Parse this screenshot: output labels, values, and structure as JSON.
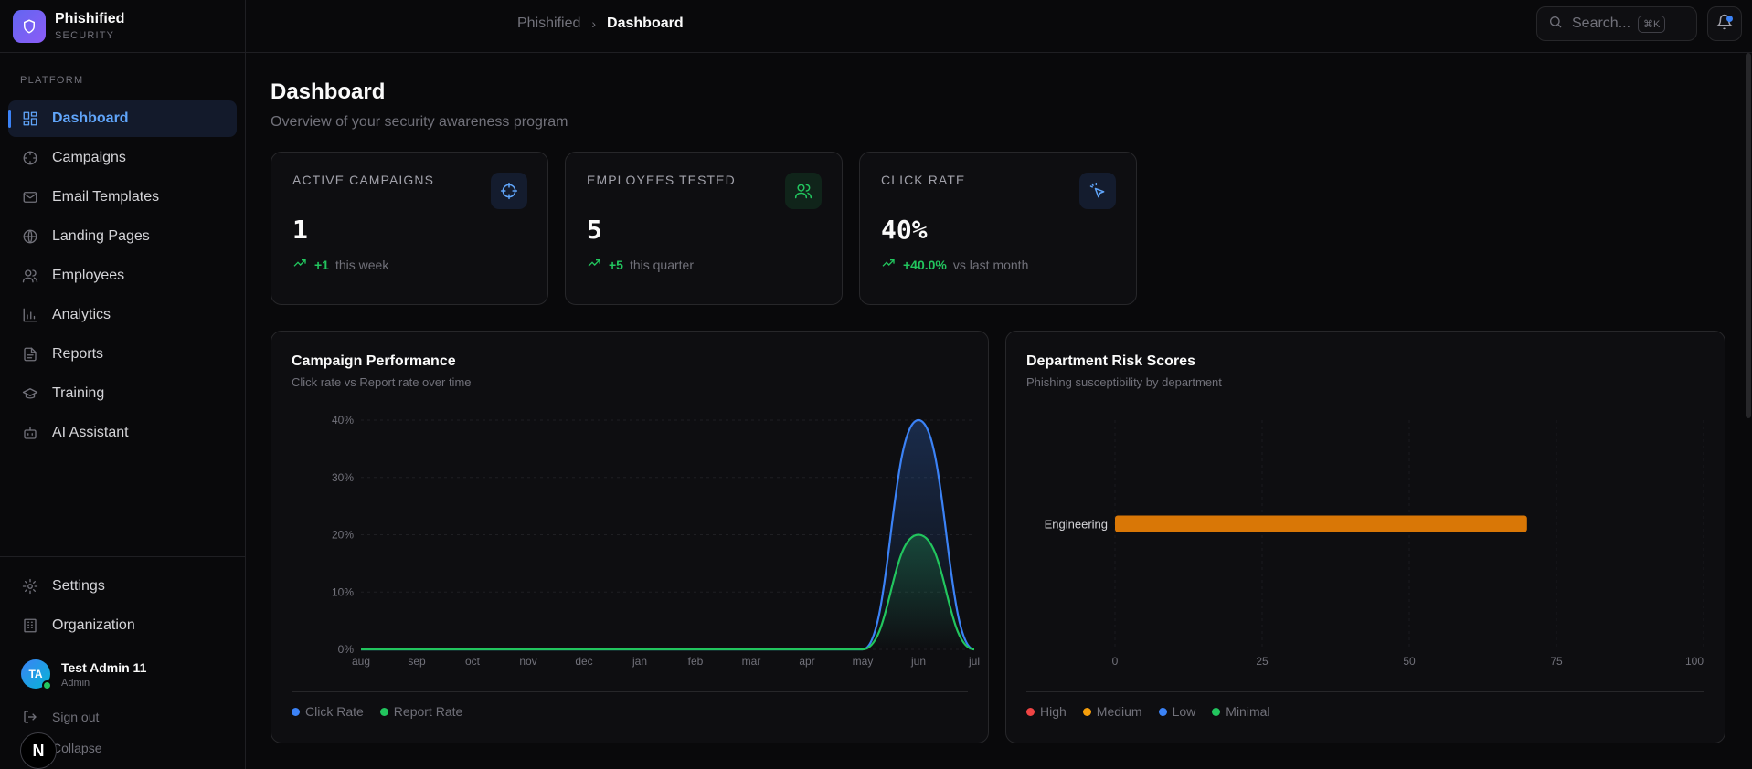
{
  "brand": {
    "name": "Phishified",
    "sub": "SECURITY"
  },
  "sidebar": {
    "section_label": "PLATFORM",
    "items": [
      {
        "label": "Dashboard",
        "icon": "dashboard-icon",
        "active": true
      },
      {
        "label": "Campaigns",
        "icon": "target-icon"
      },
      {
        "label": "Email Templates",
        "icon": "mail-icon"
      },
      {
        "label": "Landing Pages",
        "icon": "globe-icon"
      },
      {
        "label": "Employees",
        "icon": "users-icon"
      },
      {
        "label": "Analytics",
        "icon": "bar-chart-icon"
      },
      {
        "label": "Reports",
        "icon": "file-icon"
      },
      {
        "label": "Training",
        "icon": "graduation-cap-icon"
      },
      {
        "label": "AI Assistant",
        "icon": "bot-icon"
      }
    ],
    "bottom_items": [
      {
        "label": "Settings",
        "icon": "gear-icon"
      },
      {
        "label": "Organization",
        "icon": "building-icon"
      }
    ],
    "user": {
      "initials": "TA",
      "name": "Test Admin 11",
      "role": "Admin"
    },
    "sign_out": "Sign out",
    "collapse": "Collapse",
    "badge": "N"
  },
  "topbar": {
    "breadcrumb_root": "Phishified",
    "breadcrumb_current": "Dashboard",
    "search_placeholder": "Search...",
    "search_shortcut": "⌘K"
  },
  "page": {
    "title": "Dashboard",
    "subtitle": "Overview of your security awareness program"
  },
  "stats": [
    {
      "label": "ACTIVE CAMPAIGNS",
      "value": "1",
      "delta": "+1",
      "note": "this week",
      "icon": "crosshair-icon",
      "color": "#60a5fa"
    },
    {
      "label": "EMPLOYEES TESTED",
      "value": "5",
      "delta": "+5",
      "note": "this quarter",
      "icon": "users-icon",
      "color": "#22c55e"
    },
    {
      "label": "CLICK RATE",
      "value": "40%",
      "delta": "+40.0%",
      "note": "vs last month",
      "icon": "pointer-click-icon",
      "color": "#60a5fa"
    }
  ],
  "campaign_chart": {
    "title": "Campaign Performance",
    "subtitle": "Click rate vs Report rate over time",
    "legend": [
      {
        "label": "Click Rate",
        "color": "#3b82f6"
      },
      {
        "label": "Report Rate",
        "color": "#22c55e"
      }
    ]
  },
  "risk_chart": {
    "title": "Department Risk Scores",
    "subtitle": "Phishing susceptibility by department",
    "legend": [
      {
        "label": "High",
        "color": "#ef4444"
      },
      {
        "label": "Medium",
        "color": "#f59e0b"
      },
      {
        "label": "Low",
        "color": "#3b82f6"
      },
      {
        "label": "Minimal",
        "color": "#22c55e"
      }
    ]
  },
  "chart_data": [
    {
      "type": "area",
      "title": "Campaign Performance",
      "categories": [
        "aug",
        "sep",
        "oct",
        "nov",
        "dec",
        "jan",
        "feb",
        "mar",
        "apr",
        "may",
        "jun",
        "jul"
      ],
      "series": [
        {
          "name": "Click Rate",
          "values": [
            0,
            0,
            0,
            0,
            0,
            0,
            0,
            0,
            0,
            0,
            40,
            0
          ],
          "color": "#3b82f6"
        },
        {
          "name": "Report Rate",
          "values": [
            0,
            0,
            0,
            0,
            0,
            0,
            0,
            0,
            0,
            0,
            20,
            0
          ],
          "color": "#22c55e"
        }
      ],
      "y_ticks": [
        "0%",
        "10%",
        "20%",
        "30%",
        "40%"
      ],
      "ylim": [
        0,
        40
      ]
    },
    {
      "type": "bar",
      "orientation": "horizontal",
      "title": "Department Risk Scores",
      "categories": [
        "Engineering"
      ],
      "values": [
        70
      ],
      "colors": [
        "#d97706"
      ],
      "x_ticks": [
        "0",
        "25",
        "50",
        "75",
        "100"
      ],
      "xlim": [
        0,
        100
      ]
    }
  ]
}
